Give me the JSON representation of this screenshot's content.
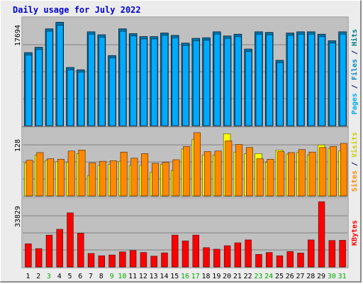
{
  "title": "Daily usage for July 2022",
  "colors": {
    "hits": "#00aaff",
    "hits_dark": "#004466",
    "files": "#0088cc",
    "pages": "#00aaee",
    "sites": "#ff8800",
    "visits": "#ffff00",
    "kbytes": "#ff0000",
    "weekend_label": "#00aa00",
    "weekday_label": "#000000",
    "panel_bg": "#c0c0c0",
    "grid": "#808080"
  },
  "chart_data": [
    {
      "type": "bar",
      "name": "hits-files-pages",
      "ylabel_parts": [
        {
          "text": "Pages",
          "color": "#00aaee"
        },
        {
          "text": " / ",
          "color": "#000080"
        },
        {
          "text": "Files",
          "color": "#0088cc"
        },
        {
          "text": " / ",
          "color": "#000080"
        },
        {
          "text": "Hits",
          "color": "#008080"
        }
      ],
      "ymax_label": "17694",
      "ymax": 17694,
      "categories": [
        "1",
        "2",
        "3",
        "4",
        "5",
        "6",
        "7",
        "8",
        "9",
        "10",
        "11",
        "12",
        "13",
        "14",
        "15",
        "16",
        "17",
        "18",
        "19",
        "20",
        "21",
        "22",
        "23",
        "24",
        "25",
        "26",
        "27",
        "28",
        "29",
        "30",
        "31"
      ],
      "series": [
        {
          "name": "Hits",
          "values": [
            12300,
            13200,
            16300,
            17400,
            9800,
            9400,
            15800,
            15300,
            11800,
            16300,
            15500,
            15000,
            15000,
            15600,
            15200,
            13900,
            14700,
            14800,
            15800,
            15100,
            15400,
            12900,
            15800,
            15700,
            11000,
            15600,
            15800,
            15800,
            15400,
            14300,
            15800
          ]
        },
        {
          "name": "Files",
          "values": [
            11900,
            12800,
            15900,
            16900,
            9400,
            9000,
            15400,
            14900,
            11400,
            15900,
            15100,
            14600,
            14600,
            15200,
            14800,
            13500,
            14300,
            14400,
            15400,
            14700,
            15000,
            12500,
            15400,
            15300,
            10600,
            15200,
            15400,
            15400,
            15000,
            13900,
            15400
          ]
        }
      ]
    },
    {
      "type": "bar",
      "name": "visits-sites",
      "ylabel_parts": [
        {
          "text": "Sites",
          "color": "#ff8800"
        },
        {
          "text": " / ",
          "color": "#000080"
        },
        {
          "text": "Visits",
          "color": "#cccc00"
        }
      ],
      "ymax_label": "128",
      "ymax": 128,
      "categories": [
        "1",
        "2",
        "3",
        "4",
        "5",
        "6",
        "7",
        "8",
        "9",
        "10",
        "11",
        "12",
        "13",
        "14",
        "15",
        "16",
        "17",
        "18",
        "19",
        "20",
        "21",
        "22",
        "23",
        "24",
        "25",
        "26",
        "27",
        "28",
        "29",
        "30",
        "31"
      ],
      "series": [
        {
          "name": "Visits",
          "values": [
            65,
            80,
            70,
            67,
            66,
            83,
            40,
            60,
            62,
            68,
            60,
            60,
            46,
            62,
            50,
            92,
            111,
            80,
            80,
            122,
            86,
            83,
            83,
            66,
            90,
            82,
            85,
            80,
            100,
            93,
            88
          ]
        },
        {
          "name": "Sites",
          "values": [
            70,
            85,
            73,
            72,
            88,
            90,
            65,
            68,
            69,
            86,
            74,
            83,
            64,
            66,
            71,
            97,
            124,
            87,
            88,
            108,
            101,
            95,
            73,
            72,
            87,
            85,
            91,
            86,
            95,
            97,
            103
          ]
        }
      ]
    },
    {
      "type": "bar",
      "name": "kbytes",
      "ylabel_parts": [
        {
          "text": "KBytes",
          "color": "#ff0000"
        }
      ],
      "ymax_label": "33829",
      "ymax": 33829,
      "categories": [
        "1",
        "2",
        "3",
        "4",
        "5",
        "6",
        "7",
        "8",
        "9",
        "10",
        "11",
        "12",
        "13",
        "14",
        "15",
        "16",
        "17",
        "18",
        "19",
        "20",
        "21",
        "22",
        "23",
        "24",
        "25",
        "26",
        "27",
        "28",
        "29",
        "30",
        "31"
      ],
      "series": [
        {
          "name": "KBytes",
          "values": [
            12000,
            9500,
            16500,
            19500,
            28000,
            17500,
            7000,
            5800,
            6200,
            7800,
            8500,
            7500,
            5600,
            7300,
            16500,
            13500,
            16500,
            10000,
            9200,
            11000,
            12500,
            14000,
            6500,
            7500,
            5800,
            8000,
            7200,
            14000,
            33800,
            13700,
            13800
          ]
        }
      ]
    }
  ],
  "x_labels": [
    {
      "text": "1",
      "weekend": false
    },
    {
      "text": "2",
      "weekend": false
    },
    {
      "text": "3",
      "weekend": true
    },
    {
      "text": "4",
      "weekend": false
    },
    {
      "text": "5",
      "weekend": false
    },
    {
      "text": "6",
      "weekend": false
    },
    {
      "text": "7",
      "weekend": false
    },
    {
      "text": "8",
      "weekend": false
    },
    {
      "text": "9",
      "weekend": true
    },
    {
      "text": "10",
      "weekend": true
    },
    {
      "text": "11",
      "weekend": false
    },
    {
      "text": "12",
      "weekend": false
    },
    {
      "text": "13",
      "weekend": false
    },
    {
      "text": "14",
      "weekend": false
    },
    {
      "text": "15",
      "weekend": false
    },
    {
      "text": "16",
      "weekend": true
    },
    {
      "text": "17",
      "weekend": true
    },
    {
      "text": "18",
      "weekend": false
    },
    {
      "text": "19",
      "weekend": false
    },
    {
      "text": "20",
      "weekend": false
    },
    {
      "text": "21",
      "weekend": false
    },
    {
      "text": "22",
      "weekend": false
    },
    {
      "text": "23",
      "weekend": true
    },
    {
      "text": "24",
      "weekend": true
    },
    {
      "text": "25",
      "weekend": false
    },
    {
      "text": "26",
      "weekend": false
    },
    {
      "text": "27",
      "weekend": false
    },
    {
      "text": "28",
      "weekend": false
    },
    {
      "text": "29",
      "weekend": false
    },
    {
      "text": "30",
      "weekend": true
    },
    {
      "text": "31",
      "weekend": true
    }
  ]
}
